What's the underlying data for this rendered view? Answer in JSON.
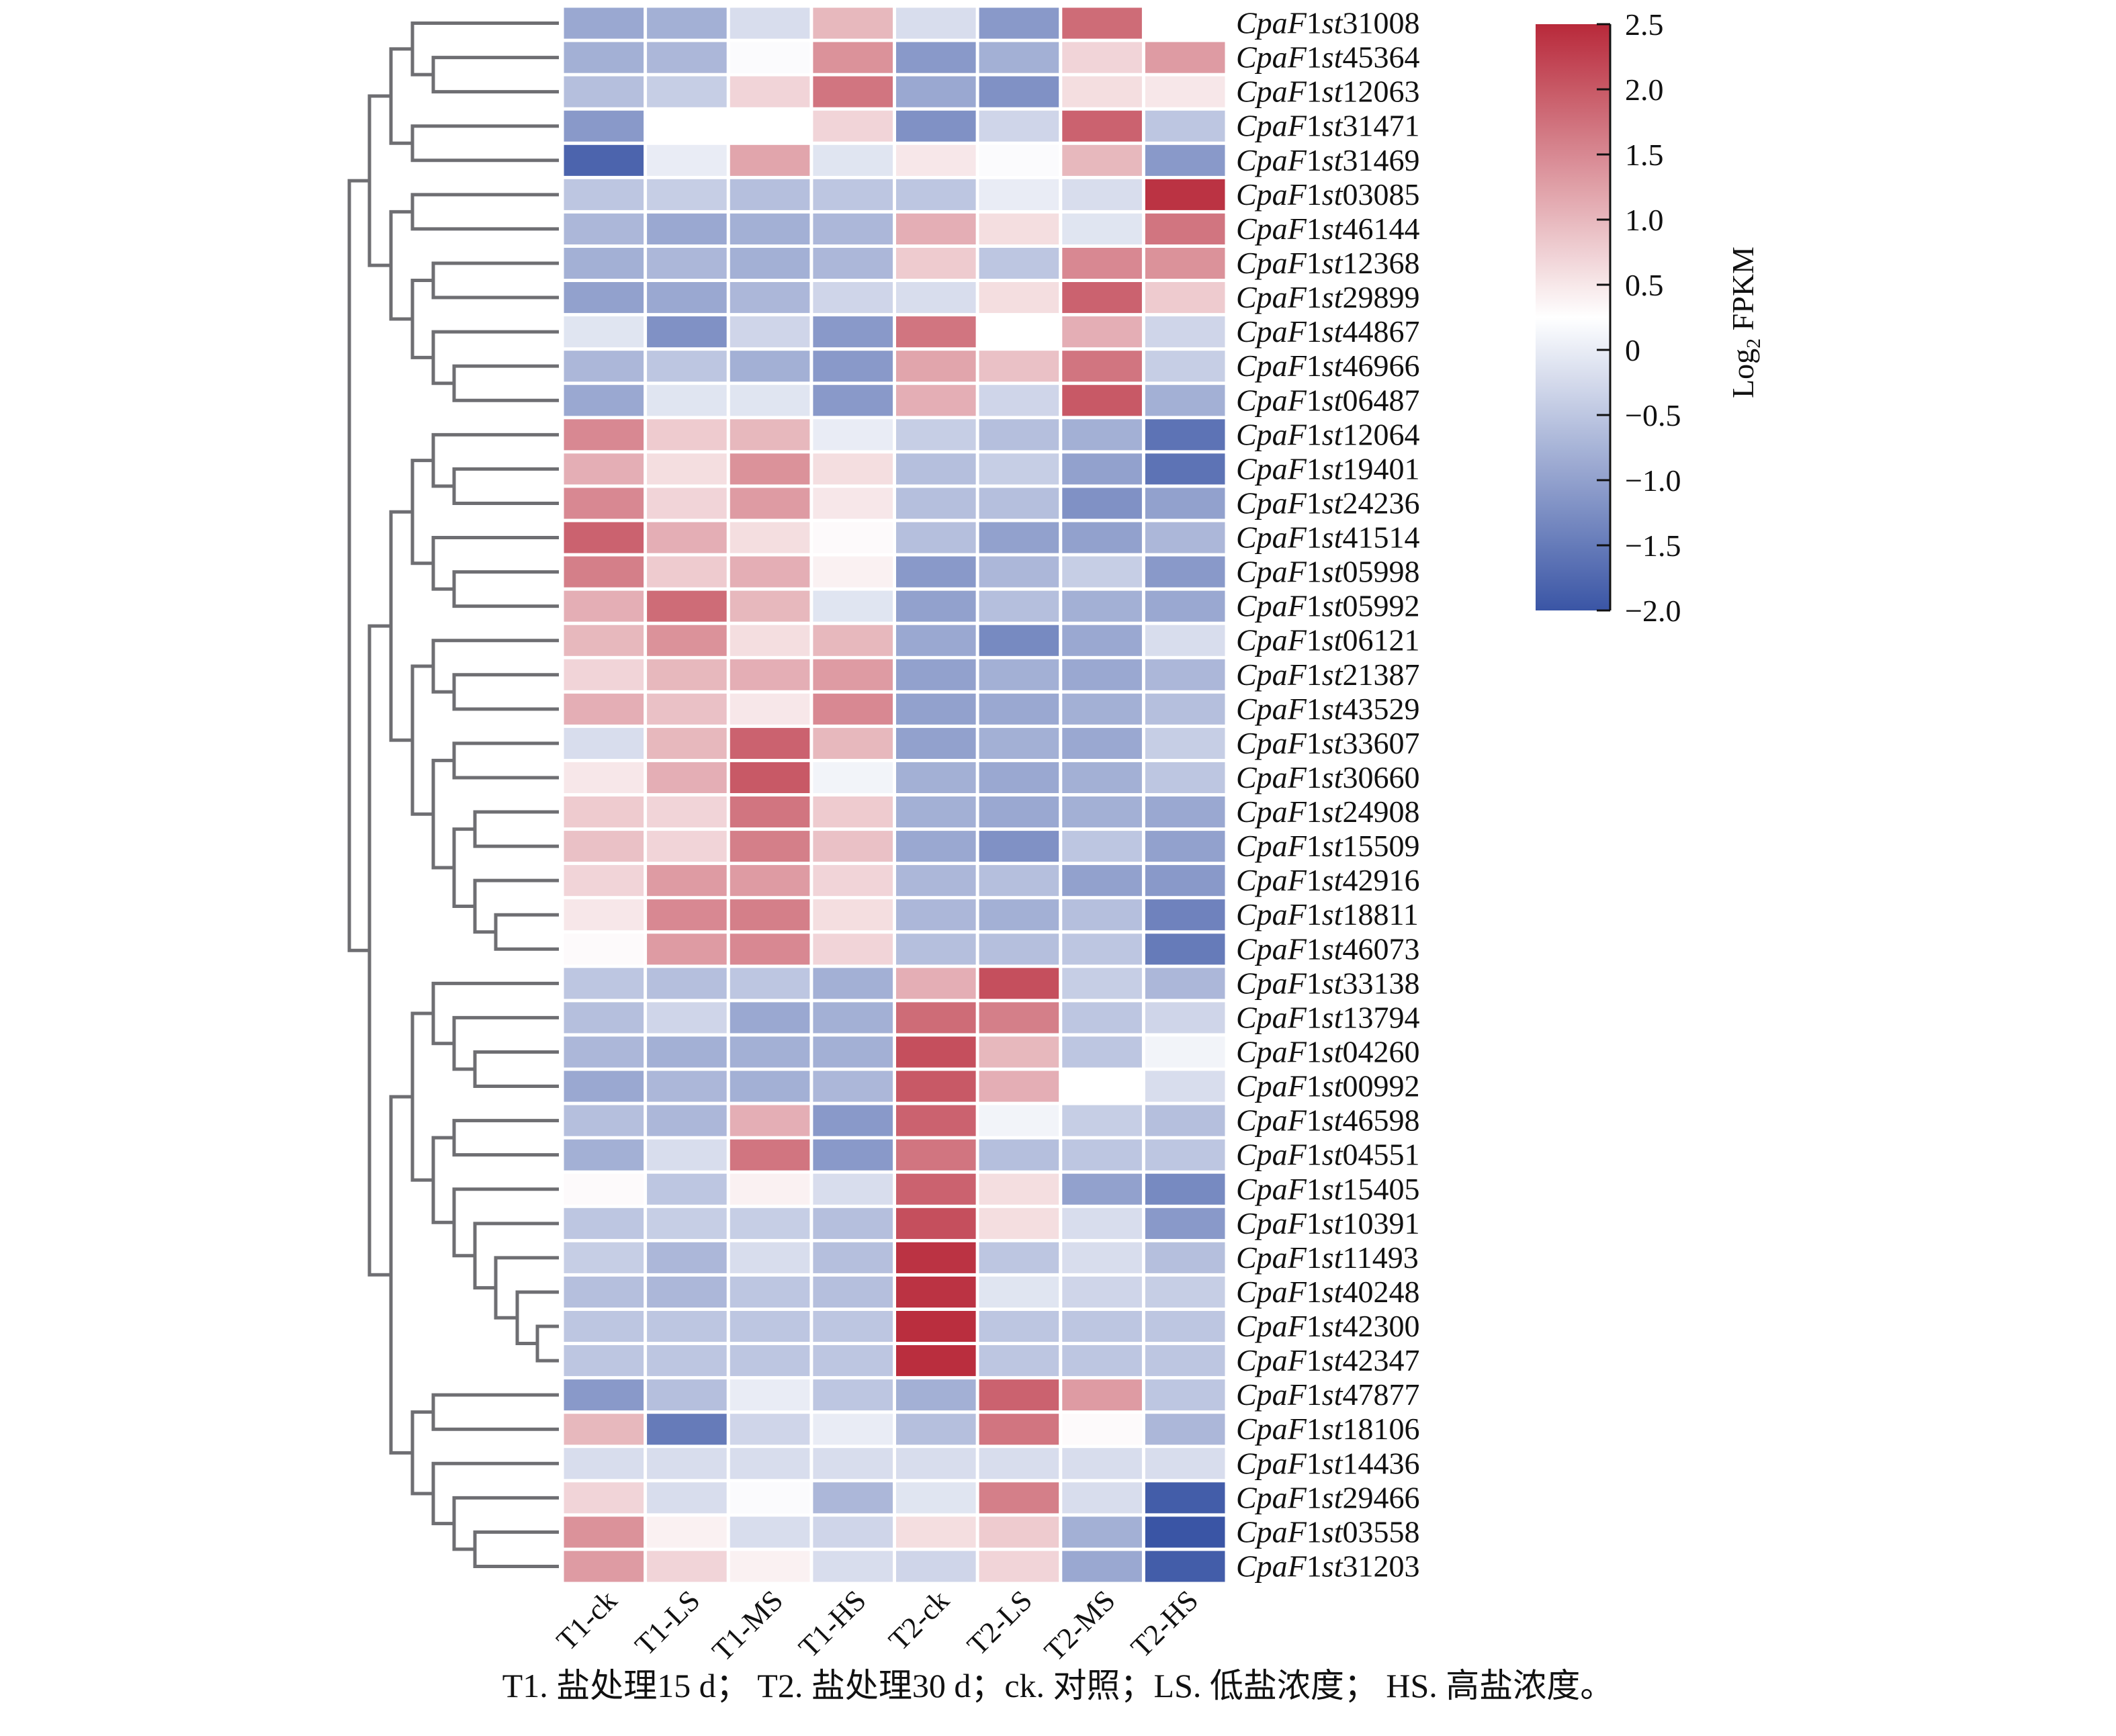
{
  "chart_data": {
    "type": "heatmap",
    "title": "",
    "columns": [
      "T1-ck",
      "T1-LS",
      "T1-MS",
      "T1-HS",
      "T2-ck",
      "T2-LS",
      "T2-MS",
      "T2-HS"
    ],
    "rows": [
      {
        "gene": {
          "prefix": "Cpa",
          "f": "F",
          "one": "1",
          "st": "st",
          "num": "31008"
        },
        "values": [
          -0.9,
          -0.8,
          -0.2,
          1.0,
          -0.2,
          -1.1,
          1.8,
          0.25
        ]
      },
      {
        "gene": {
          "prefix": "Cpa",
          "f": "F",
          "one": "1",
          "st": "st",
          "num": "45364"
        },
        "values": [
          -0.8,
          -0.7,
          0.2,
          1.4,
          -1.1,
          -0.8,
          0.7,
          1.3
        ]
      },
      {
        "gene": {
          "prefix": "Cpa",
          "f": "F",
          "one": "1",
          "st": "st",
          "num": "12063"
        },
        "values": [
          -0.6,
          -0.4,
          0.7,
          1.7,
          -0.9,
          -1.2,
          0.6,
          0.5
        ]
      },
      {
        "gene": {
          "prefix": "Cpa",
          "f": "F",
          "one": "1",
          "st": "st",
          "num": "31471"
        },
        "values": [
          -1.1,
          0.25,
          0.25,
          0.7,
          -1.2,
          -0.3,
          1.9,
          -0.5
        ]
      },
      {
        "gene": {
          "prefix": "Cpa",
          "f": "F",
          "one": "1",
          "st": "st",
          "num": "31469"
        },
        "values": [
          -1.8,
          0.0,
          1.2,
          -0.1,
          0.5,
          0.2,
          1.0,
          -1.1
        ]
      },
      {
        "gene": {
          "prefix": "Cpa",
          "f": "F",
          "one": "1",
          "st": "st",
          "num": "03085"
        },
        "values": [
          -0.5,
          -0.4,
          -0.6,
          -0.5,
          -0.5,
          0.0,
          -0.2,
          2.4
        ]
      },
      {
        "gene": {
          "prefix": "Cpa",
          "f": "F",
          "one": "1",
          "st": "st",
          "num": "46144"
        },
        "values": [
          -0.7,
          -0.9,
          -0.8,
          -0.7,
          1.1,
          0.6,
          -0.1,
          1.7
        ]
      },
      {
        "gene": {
          "prefix": "Cpa",
          "f": "F",
          "one": "1",
          "st": "st",
          "num": "12368"
        },
        "values": [
          -0.8,
          -0.7,
          -0.8,
          -0.7,
          0.8,
          -0.5,
          1.5,
          1.4
        ]
      },
      {
        "gene": {
          "prefix": "Cpa",
          "f": "F",
          "one": "1",
          "st": "st",
          "num": "29899"
        },
        "values": [
          -1.0,
          -0.9,
          -0.7,
          -0.3,
          -0.2,
          0.6,
          1.9,
          0.8
        ]
      },
      {
        "gene": {
          "prefix": "Cpa",
          "f": "F",
          "one": "1",
          "st": "st",
          "num": "44867"
        },
        "values": [
          -0.1,
          -1.2,
          -0.3,
          -1.1,
          1.7,
          0.25,
          1.1,
          -0.3
        ]
      },
      {
        "gene": {
          "prefix": "Cpa",
          "f": "F",
          "one": "1",
          "st": "st",
          "num": "46966"
        },
        "values": [
          -0.7,
          -0.5,
          -0.8,
          -1.1,
          1.2,
          0.9,
          1.7,
          -0.4
        ]
      },
      {
        "gene": {
          "prefix": "Cpa",
          "f": "F",
          "one": "1",
          "st": "st",
          "num": "06487"
        },
        "values": [
          -0.9,
          -0.1,
          -0.1,
          -1.1,
          1.1,
          -0.3,
          2.0,
          -0.8
        ]
      },
      {
        "gene": {
          "prefix": "Cpa",
          "f": "F",
          "one": "1",
          "st": "st",
          "num": "12064"
        },
        "values": [
          1.5,
          0.8,
          1.0,
          0.0,
          -0.4,
          -0.6,
          -0.8,
          -1.6
        ]
      },
      {
        "gene": {
          "prefix": "Cpa",
          "f": "F",
          "one": "1",
          "st": "st",
          "num": "19401"
        },
        "values": [
          1.1,
          0.6,
          1.4,
          0.6,
          -0.6,
          -0.4,
          -1.0,
          -1.6
        ]
      },
      {
        "gene": {
          "prefix": "Cpa",
          "f": "F",
          "one": "1",
          "st": "st",
          "num": "24236"
        },
        "values": [
          1.5,
          0.7,
          1.3,
          0.5,
          -0.6,
          -0.6,
          -1.2,
          -1.0
        ]
      },
      {
        "gene": {
          "prefix": "Cpa",
          "f": "F",
          "one": "1",
          "st": "st",
          "num": "41514"
        },
        "values": [
          1.9,
          1.1,
          0.6,
          0.3,
          -0.6,
          -1.0,
          -1.0,
          -0.7
        ]
      },
      {
        "gene": {
          "prefix": "Cpa",
          "f": "F",
          "one": "1",
          "st": "st",
          "num": "05998"
        },
        "values": [
          1.6,
          0.8,
          1.1,
          0.4,
          -1.1,
          -0.7,
          -0.4,
          -1.1
        ]
      },
      {
        "gene": {
          "prefix": "Cpa",
          "f": "F",
          "one": "1",
          "st": "st",
          "num": "05992"
        },
        "values": [
          1.1,
          1.8,
          1.0,
          -0.1,
          -1.0,
          -0.6,
          -0.8,
          -0.9
        ]
      },
      {
        "gene": {
          "prefix": "Cpa",
          "f": "F",
          "one": "1",
          "st": "st",
          "num": "06121"
        },
        "values": [
          1.0,
          1.4,
          0.6,
          1.0,
          -0.9,
          -1.3,
          -0.9,
          -0.2
        ]
      },
      {
        "gene": {
          "prefix": "Cpa",
          "f": "F",
          "one": "1",
          "st": "st",
          "num": "21387"
        },
        "values": [
          0.7,
          1.0,
          1.1,
          1.3,
          -1.0,
          -0.8,
          -0.9,
          -0.7
        ]
      },
      {
        "gene": {
          "prefix": "Cpa",
          "f": "F",
          "one": "1",
          "st": "st",
          "num": "43529"
        },
        "values": [
          1.1,
          0.9,
          0.5,
          1.5,
          -1.0,
          -0.9,
          -0.8,
          -0.6
        ]
      },
      {
        "gene": {
          "prefix": "Cpa",
          "f": "F",
          "one": "1",
          "st": "st",
          "num": "33607"
        },
        "values": [
          -0.2,
          1.0,
          1.9,
          1.0,
          -1.0,
          -0.8,
          -0.9,
          -0.4
        ]
      },
      {
        "gene": {
          "prefix": "Cpa",
          "f": "F",
          "one": "1",
          "st": "st",
          "num": "30660"
        },
        "values": [
          0.5,
          1.1,
          2.0,
          0.1,
          -0.8,
          -0.9,
          -0.8,
          -0.5
        ]
      },
      {
        "gene": {
          "prefix": "Cpa",
          "f": "F",
          "one": "1",
          "st": "st",
          "num": "24908"
        },
        "values": [
          0.8,
          0.7,
          1.7,
          0.8,
          -0.8,
          -0.9,
          -0.8,
          -0.9
        ]
      },
      {
        "gene": {
          "prefix": "Cpa",
          "f": "F",
          "one": "1",
          "st": "st",
          "num": "15509"
        },
        "values": [
          0.9,
          0.7,
          1.6,
          0.9,
          -0.9,
          -1.2,
          -0.5,
          -1.0
        ]
      },
      {
        "gene": {
          "prefix": "Cpa",
          "f": "F",
          "one": "1",
          "st": "st",
          "num": "42916"
        },
        "values": [
          0.7,
          1.3,
          1.3,
          0.7,
          -0.7,
          -0.6,
          -1.0,
          -1.1
        ]
      },
      {
        "gene": {
          "prefix": "Cpa",
          "f": "F",
          "one": "1",
          "st": "st",
          "num": "18811"
        },
        "values": [
          0.5,
          1.5,
          1.6,
          0.6,
          -0.7,
          -0.8,
          -0.6,
          -1.4
        ]
      },
      {
        "gene": {
          "prefix": "Cpa",
          "f": "F",
          "one": "1",
          "st": "st",
          "num": "46073"
        },
        "values": [
          0.3,
          1.3,
          1.5,
          0.7,
          -0.6,
          -0.6,
          -0.5,
          -1.5
        ]
      },
      {
        "gene": {
          "prefix": "Cpa",
          "f": "F",
          "one": "1",
          "st": "st",
          "num": "33138"
        },
        "values": [
          -0.5,
          -0.6,
          -0.5,
          -0.8,
          1.1,
          2.1,
          -0.4,
          -0.7
        ]
      },
      {
        "gene": {
          "prefix": "Cpa",
          "f": "F",
          "one": "1",
          "st": "st",
          "num": "13794"
        },
        "values": [
          -0.6,
          -0.3,
          -0.9,
          -0.8,
          1.8,
          1.6,
          -0.5,
          -0.3
        ]
      },
      {
        "gene": {
          "prefix": "Cpa",
          "f": "F",
          "one": "1",
          "st": "st",
          "num": "04260"
        },
        "values": [
          -0.7,
          -0.8,
          -0.8,
          -0.8,
          2.1,
          1.0,
          -0.5,
          0.1
        ]
      },
      {
        "gene": {
          "prefix": "Cpa",
          "f": "F",
          "one": "1",
          "st": "st",
          "num": "00992"
        },
        "values": [
          -0.9,
          -0.7,
          -0.8,
          -0.7,
          2.0,
          1.1,
          0.25,
          -0.2
        ]
      },
      {
        "gene": {
          "prefix": "Cpa",
          "f": "F",
          "one": "1",
          "st": "st",
          "num": "46598"
        },
        "values": [
          -0.6,
          -0.7,
          1.1,
          -1.1,
          1.9,
          0.1,
          -0.4,
          -0.6
        ]
      },
      {
        "gene": {
          "prefix": "Cpa",
          "f": "F",
          "one": "1",
          "st": "st",
          "num": "04551"
        },
        "values": [
          -0.8,
          -0.2,
          1.7,
          -1.1,
          1.7,
          -0.6,
          -0.5,
          -0.5
        ]
      },
      {
        "gene": {
          "prefix": "Cpa",
          "f": "F",
          "one": "1",
          "st": "st",
          "num": "15405"
        },
        "values": [
          0.3,
          -0.5,
          0.4,
          -0.2,
          1.9,
          0.6,
          -1.0,
          -1.3
        ]
      },
      {
        "gene": {
          "prefix": "Cpa",
          "f": "F",
          "one": "1",
          "st": "st",
          "num": "10391"
        },
        "values": [
          -0.5,
          -0.4,
          -0.4,
          -0.6,
          2.1,
          0.6,
          -0.2,
          -1.1
        ]
      },
      {
        "gene": {
          "prefix": "Cpa",
          "f": "F",
          "one": "1",
          "st": "st",
          "num": "11493"
        },
        "values": [
          -0.4,
          -0.7,
          -0.2,
          -0.6,
          2.4,
          -0.5,
          -0.2,
          -0.6
        ]
      },
      {
        "gene": {
          "prefix": "Cpa",
          "f": "F",
          "one": "1",
          "st": "st",
          "num": "40248"
        },
        "values": [
          -0.6,
          -0.7,
          -0.5,
          -0.6,
          2.4,
          -0.1,
          -0.3,
          -0.4
        ]
      },
      {
        "gene": {
          "prefix": "Cpa",
          "f": "F",
          "one": "1",
          "st": "st",
          "num": "42300"
        },
        "values": [
          -0.5,
          -0.5,
          -0.5,
          -0.5,
          2.45,
          -0.5,
          -0.5,
          -0.5
        ]
      },
      {
        "gene": {
          "prefix": "Cpa",
          "f": "F",
          "one": "1",
          "st": "st",
          "num": "42347"
        },
        "values": [
          -0.5,
          -0.5,
          -0.5,
          -0.5,
          2.45,
          -0.5,
          -0.5,
          -0.5
        ]
      },
      {
        "gene": {
          "prefix": "Cpa",
          "f": "F",
          "one": "1",
          "st": "st",
          "num": "47877"
        },
        "values": [
          -1.1,
          -0.6,
          0.0,
          -0.5,
          -0.8,
          1.9,
          1.3,
          -0.5
        ]
      },
      {
        "gene": {
          "prefix": "Cpa",
          "f": "F",
          "one": "1",
          "st": "st",
          "num": "18106"
        },
        "values": [
          1.0,
          -1.5,
          -0.3,
          0.0,
          -0.6,
          1.7,
          0.3,
          -0.7
        ]
      },
      {
        "gene": {
          "prefix": "Cpa",
          "f": "F",
          "one": "1",
          "st": "st",
          "num": "14436"
        },
        "values": [
          -0.2,
          -0.2,
          -0.2,
          -0.2,
          -0.2,
          -0.2,
          -0.2,
          -0.2
        ]
      },
      {
        "gene": {
          "prefix": "Cpa",
          "f": "F",
          "one": "1",
          "st": "st",
          "num": "29466"
        },
        "values": [
          0.7,
          -0.2,
          0.2,
          -0.7,
          -0.1,
          1.6,
          -0.2,
          -1.9
        ]
      },
      {
        "gene": {
          "prefix": "Cpa",
          "f": "F",
          "one": "1",
          "st": "st",
          "num": "03558"
        },
        "values": [
          1.4,
          0.4,
          -0.2,
          -0.3,
          0.6,
          0.8,
          -0.8,
          -2.0
        ]
      },
      {
        "gene": {
          "prefix": "Cpa",
          "f": "F",
          "one": "1",
          "st": "st",
          "num": "31203"
        },
        "values": [
          1.3,
          0.7,
          0.4,
          -0.2,
          -0.3,
          0.7,
          -0.9,
          -1.9
        ]
      }
    ],
    "colorbar": {
      "label_main": "Log",
      "label_sub": "2",
      "label_tail": " FPKM",
      "range": [
        -2.0,
        2.5
      ],
      "ticks": [
        "2.5",
        "2.0",
        "1.5",
        "1.0",
        "0.5",
        "0",
        "−0.5",
        "−1.0",
        "−1.5",
        "−2.0"
      ],
      "tick_values": [
        2.5,
        2.0,
        1.5,
        1.0,
        0.5,
        0,
        -0.5,
        -1.0,
        -1.5,
        -2.0
      ],
      "colors": {
        "low": "#3a55a5",
        "mid": "#ffffff",
        "high": "#b8293a"
      },
      "white_point": 0.25
    },
    "row_dendrogram": true,
    "legend_placement": "top-right"
  },
  "caption": "T1. 盐处理15 d；  T2. 盐处理30 d；ck. 对照；LS. 低盐浓度；  HS. 高盐浓度。"
}
